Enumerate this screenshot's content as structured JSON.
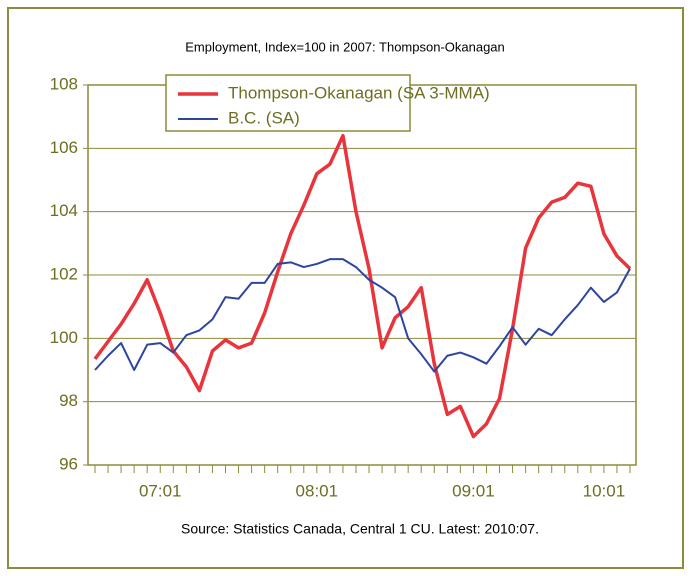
{
  "chart_data": {
    "type": "line",
    "title": "Employment, Index=100 in 2007: Thompson-Okanagan",
    "source": "Source: Statistics Canada, Central 1 CU. Latest: 2010:07.",
    "categories": [
      null,
      null,
      null,
      null,
      null,
      "07:01",
      null,
      null,
      null,
      null,
      null,
      null,
      null,
      null,
      null,
      null,
      null,
      "08:01",
      null,
      null,
      null,
      null,
      null,
      null,
      null,
      null,
      null,
      null,
      null,
      "09:01",
      null,
      null,
      null,
      null,
      null,
      null,
      null,
      null,
      null,
      "10:01",
      null,
      null
    ],
    "series": [
      {
        "name": "Thompson-Okanagan (SA 3-MMA)",
        "color": "#e8343a",
        "values": [
          99.35,
          99.9,
          100.45,
          101.1,
          101.85,
          100.8,
          99.6,
          99.1,
          98.35,
          99.6,
          99.95,
          99.7,
          99.85,
          100.8,
          102.1,
          103.3,
          104.2,
          105.2,
          105.5,
          106.4,
          104.0,
          102.2,
          99.7,
          100.65,
          101.0,
          101.6,
          99.2,
          97.6,
          97.85,
          96.9,
          97.3,
          98.1,
          100.3,
          102.85,
          103.8,
          104.3,
          104.45,
          104.9,
          104.8,
          103.3,
          102.6,
          102.2
        ]
      },
      {
        "name": "B.C. (SA)",
        "color": "#2e45a0",
        "values": [
          99.0,
          99.45,
          99.85,
          99.0,
          99.8,
          99.85,
          99.55,
          100.1,
          100.25,
          100.6,
          101.3,
          101.25,
          101.75,
          101.75,
          102.35,
          102.4,
          102.25,
          102.35,
          102.5,
          102.5,
          102.25,
          101.85,
          101.6,
          101.3,
          100.0,
          99.5,
          98.95,
          99.45,
          99.55,
          99.4,
          99.2,
          99.75,
          100.35,
          99.8,
          100.3,
          100.1,
          100.6,
          101.05,
          101.6,
          101.15,
          101.45,
          102.2
        ]
      }
    ],
    "ylim": [
      96,
      108
    ],
    "yticks": [
      96,
      98,
      100,
      102,
      104,
      106,
      108
    ],
    "grid": true
  }
}
